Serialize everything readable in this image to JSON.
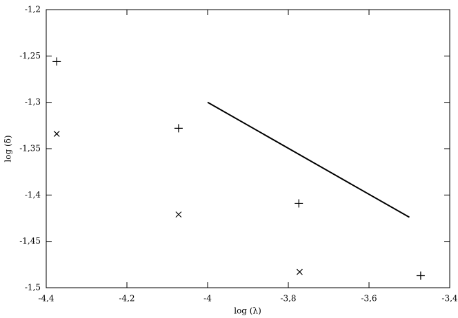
{
  "chart_data": {
    "type": "scatter",
    "xlabel": "log (λ)",
    "ylabel": "log (δ)",
    "xlim": [
      -4.4,
      -3.4
    ],
    "xticks": [
      {
        "value": -4.4,
        "label": "-4,4"
      },
      {
        "value": -4.2,
        "label": "-4,2"
      },
      -4,
      {
        "value": -3.8,
        "label": "-3,8"
      },
      {
        "value": -3.6,
        "label": "-3,6"
      },
      {
        "value": -3.4,
        "label": "-3,4"
      }
    ],
    "ylim": [
      -1.5,
      -1.2
    ],
    "yticks": [
      {
        "value": -1.5,
        "label": "-1,5"
      },
      {
        "value": -1.45,
        "label": "-1,45"
      },
      {
        "value": -1.4,
        "label": "-1,4"
      },
      {
        "value": -1.35,
        "label": "-1,35"
      },
      {
        "value": -1.3,
        "label": "-1,3"
      },
      {
        "value": -1.25,
        "label": "-1,25"
      },
      {
        "value": -1.2,
        "label": "-1,2"
      }
    ],
    "series": [
      {
        "marker": "plus",
        "color": "#000000",
        "x": [
          -4.374,
          -4.072,
          -3.774,
          -3.472
        ],
        "values": [
          -1.256,
          -1.328,
          -1.409,
          -1.487
        ]
      },
      {
        "marker": "cross",
        "color": "#000000",
        "x": [
          -4.374,
          -4.072,
          -3.772
        ],
        "values": [
          -1.334,
          -1.421,
          -1.483
        ]
      },
      {
        "type": "line",
        "color": "#000000",
        "x": [
          -4.0,
          -3.5
        ],
        "values": [
          -1.3,
          -1.424
        ]
      }
    ]
  }
}
